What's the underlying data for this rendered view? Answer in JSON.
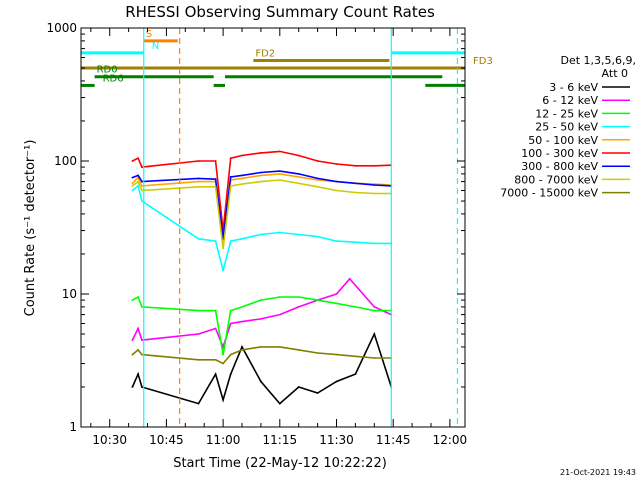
{
  "chart_data": {
    "type": "line",
    "title": "RHESSI Observing Summary Count Rates",
    "xlabel": "Start Time (22-May-12 10:22:22)",
    "ylabel": "Count Rate (s⁻¹ detector⁻¹)",
    "x_start": "10:22:22",
    "x_range_minutes": [
      22.4,
      124
    ],
    "y_scale": "log",
    "ylim": [
      1,
      1000
    ],
    "x_ticks": [
      {
        "label": "10:30",
        "minute": 30
      },
      {
        "label": "10:45",
        "minute": 45
      },
      {
        "label": "11:00",
        "minute": 60
      },
      {
        "label": "11:15",
        "minute": 75
      },
      {
        "label": "11:30",
        "minute": 90
      },
      {
        "label": "11:45",
        "minute": 105
      },
      {
        "label": "12:00",
        "minute": 120
      }
    ],
    "y_ticks": [
      {
        "label": "1",
        "value": 1
      },
      {
        "label": "10",
        "value": 10
      },
      {
        "label": "100",
        "value": 100
      },
      {
        "label": "1000",
        "value": 1000
      }
    ],
    "legend": {
      "header_lines": [
        "Det 1,3,5,6,9,",
        "Att 0"
      ],
      "position": "right"
    },
    "series": [
      {
        "name": "3 - 6 keV",
        "color": "#000000",
        "x": [
          36.0,
          37.5,
          38.5,
          53.5,
          58.0,
          60.0,
          62.0,
          65.0,
          70.0,
          75.0,
          80.0,
          85.0,
          90.0,
          95.0,
          100.0,
          104.5
        ],
        "y": [
          2.0,
          2.5,
          2.0,
          1.5,
          2.5,
          1.6,
          2.5,
          4.0,
          2.2,
          1.5,
          2.0,
          1.8,
          2.2,
          2.5,
          5.0,
          2.0
        ]
      },
      {
        "name": "6 - 12 keV",
        "color": "#ff00ff",
        "x": [
          36.0,
          37.5,
          38.5,
          53.5,
          58.0,
          60.0,
          62.0,
          65.0,
          70.0,
          75.0,
          80.0,
          85.0,
          90.0,
          93.5,
          97.0,
          100.0,
          104.5
        ],
        "y": [
          4.5,
          5.5,
          4.5,
          5.0,
          5.5,
          4.0,
          6.0,
          6.2,
          6.5,
          7.0,
          8.0,
          9.0,
          10.0,
          13.0,
          10.0,
          8.0,
          7.0
        ]
      },
      {
        "name": "12 - 25 keV",
        "color": "#00ff00",
        "x": [
          36.0,
          37.5,
          38.5,
          53.5,
          58.0,
          60.0,
          62.0,
          65.0,
          70.0,
          75.0,
          80.0,
          85.0,
          90.0,
          95.0,
          100.0,
          104.5
        ],
        "y": [
          9.0,
          9.5,
          8.0,
          7.5,
          7.5,
          3.5,
          7.5,
          8.0,
          9.0,
          9.5,
          9.5,
          9.0,
          8.5,
          8.0,
          7.5,
          7.5
        ]
      },
      {
        "name": "25 - 50 keV",
        "color": "#00ffff",
        "x": [
          36.0,
          37.5,
          38.5,
          53.5,
          58.0,
          60.0,
          62.0,
          65.0,
          70.0,
          75.0,
          80.0,
          85.0,
          90.0,
          95.0,
          100.0,
          104.5
        ],
        "y": [
          60.0,
          65.0,
          50.0,
          26.0,
          25.0,
          15.0,
          25.0,
          26.0,
          28.0,
          29.0,
          28.0,
          27.0,
          25.0,
          24.5,
          24.0,
          24.0
        ]
      },
      {
        "name": "50 - 100 keV",
        "color": "#ffa500",
        "x": [
          36.0,
          37.5,
          38.5,
          53.5,
          58.0,
          60.0,
          62.0,
          65.0,
          70.0,
          75.0,
          80.0,
          85.0,
          90.0,
          95.0,
          100.0,
          104.5
        ],
        "y": [
          68.0,
          75.0,
          65.0,
          70.0,
          70.0,
          25.0,
          72.0,
          74.0,
          78.0,
          80.0,
          76.0,
          72.0,
          70.0,
          68.0,
          67.0,
          66.0
        ]
      },
      {
        "name": "100 - 300 keV",
        "color": "#ff0000",
        "x": [
          36.0,
          37.5,
          38.5,
          53.5,
          58.0,
          60.0,
          62.0,
          65.0,
          70.0,
          75.0,
          80.0,
          85.0,
          90.0,
          95.0,
          100.0,
          104.5
        ],
        "y": [
          100.0,
          105.0,
          90.0,
          100.0,
          100.0,
          30.0,
          105.0,
          110.0,
          115.0,
          118.0,
          110.0,
          100.0,
          95.0,
          92.0,
          92.0,
          93.0
        ]
      },
      {
        "name": "300 - 800 keV",
        "color": "#0000ff",
        "x": [
          36.0,
          37.5,
          38.5,
          53.5,
          58.0,
          60.0,
          62.0,
          65.0,
          70.0,
          75.0,
          80.0,
          85.0,
          90.0,
          95.0,
          100.0,
          104.5
        ],
        "y": [
          75.0,
          78.0,
          70.0,
          74.0,
          73.0,
          26.0,
          76.0,
          78.0,
          82.0,
          84.0,
          80.0,
          74.0,
          70.0,
          68.0,
          66.0,
          65.0
        ]
      },
      {
        "name": "800 - 7000 keV",
        "color": "#cccc00",
        "x": [
          36.0,
          37.5,
          38.5,
          53.5,
          58.0,
          60.0,
          62.0,
          65.0,
          70.0,
          75.0,
          80.0,
          85.0,
          90.0,
          95.0,
          100.0,
          104.5
        ],
        "y": [
          65.0,
          70.0,
          60.0,
          64.0,
          64.0,
          22.0,
          65.0,
          67.0,
          70.0,
          72.0,
          68.0,
          64.0,
          60.0,
          58.0,
          57.0,
          57.0
        ]
      },
      {
        "name": "7000 - 15000 keV",
        "color": "#808000",
        "x": [
          36.0,
          37.5,
          38.5,
          53.5,
          58.0,
          60.0,
          62.0,
          65.0,
          70.0,
          75.0,
          80.0,
          85.0,
          90.0,
          95.0,
          100.0,
          104.5
        ],
        "y": [
          3.5,
          3.8,
          3.5,
          3.2,
          3.2,
          3.0,
          3.5,
          3.8,
          4.0,
          4.0,
          3.8,
          3.6,
          3.5,
          3.4,
          3.3,
          3.3
        ]
      }
    ],
    "state_bars": [
      {
        "label": "S",
        "color": "#ff8000",
        "segments": [
          [
            39.0,
            48.0
          ]
        ],
        "level": 800
      },
      {
        "label": "N",
        "color": "#00ffff",
        "segments": [
          [
            22.4,
            39.0
          ],
          [
            104.5,
            124
          ]
        ],
        "level": 650
      },
      {
        "label": "FD2",
        "color": "#a08000",
        "segments": [
          [
            68.0,
            104.0
          ]
        ],
        "level": 570
      },
      {
        "label": "FD3",
        "color": "#a08000",
        "segments": [
          [
            22.4,
            124
          ]
        ],
        "level": 500
      },
      {
        "label": "RD0",
        "color": "#008000",
        "segments": [
          [
            26.0,
            57.5
          ],
          [
            60.5,
            118.0
          ]
        ],
        "level": 430
      },
      {
        "label": "RD6",
        "color": "#008000",
        "segments": [
          [
            22.4,
            26.0
          ],
          [
            57.5,
            60.5
          ],
          [
            113.5,
            124
          ]
        ],
        "level": 370
      }
    ],
    "vlines": [
      {
        "x": 39.0,
        "color": "#00ffff",
        "style": "solid"
      },
      {
        "x": 48.5,
        "color": "#ff8000",
        "style": "dashed"
      },
      {
        "x": 104.5,
        "color": "#00ffff",
        "style": "solid"
      },
      {
        "x": 122.0,
        "color": "#00ffff",
        "style": "dashed"
      }
    ],
    "footer": "21-Oct-2021 19:43"
  }
}
